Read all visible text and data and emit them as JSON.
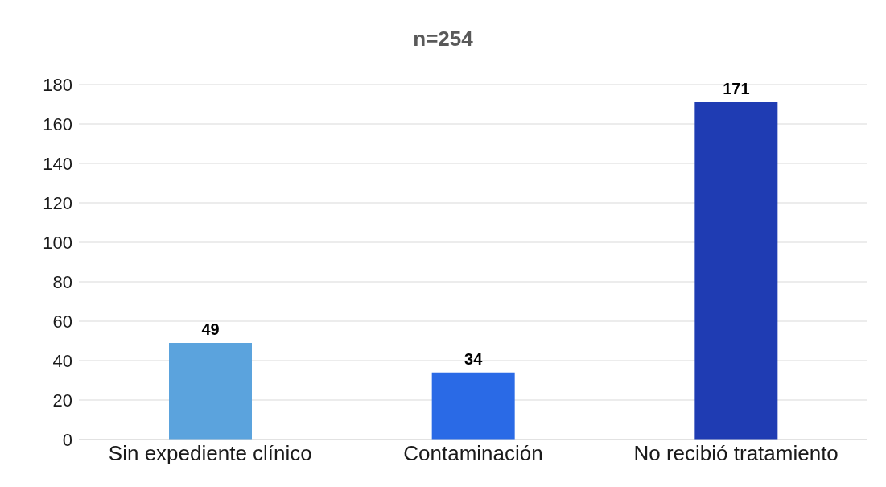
{
  "chart_data": {
    "type": "bar",
    "title": "n=254",
    "categories": [
      "Sin expediente clínico",
      "Contaminación",
      "No recibió tratamiento"
    ],
    "values": [
      49,
      34,
      171
    ],
    "colors": [
      "#5ba3dd",
      "#2a6ae6",
      "#1f3cb3"
    ],
    "ylim": [
      0,
      180
    ],
    "yticks": [
      0,
      20,
      40,
      60,
      80,
      100,
      120,
      140,
      160,
      180
    ],
    "grid": "y",
    "data_labels": true
  }
}
